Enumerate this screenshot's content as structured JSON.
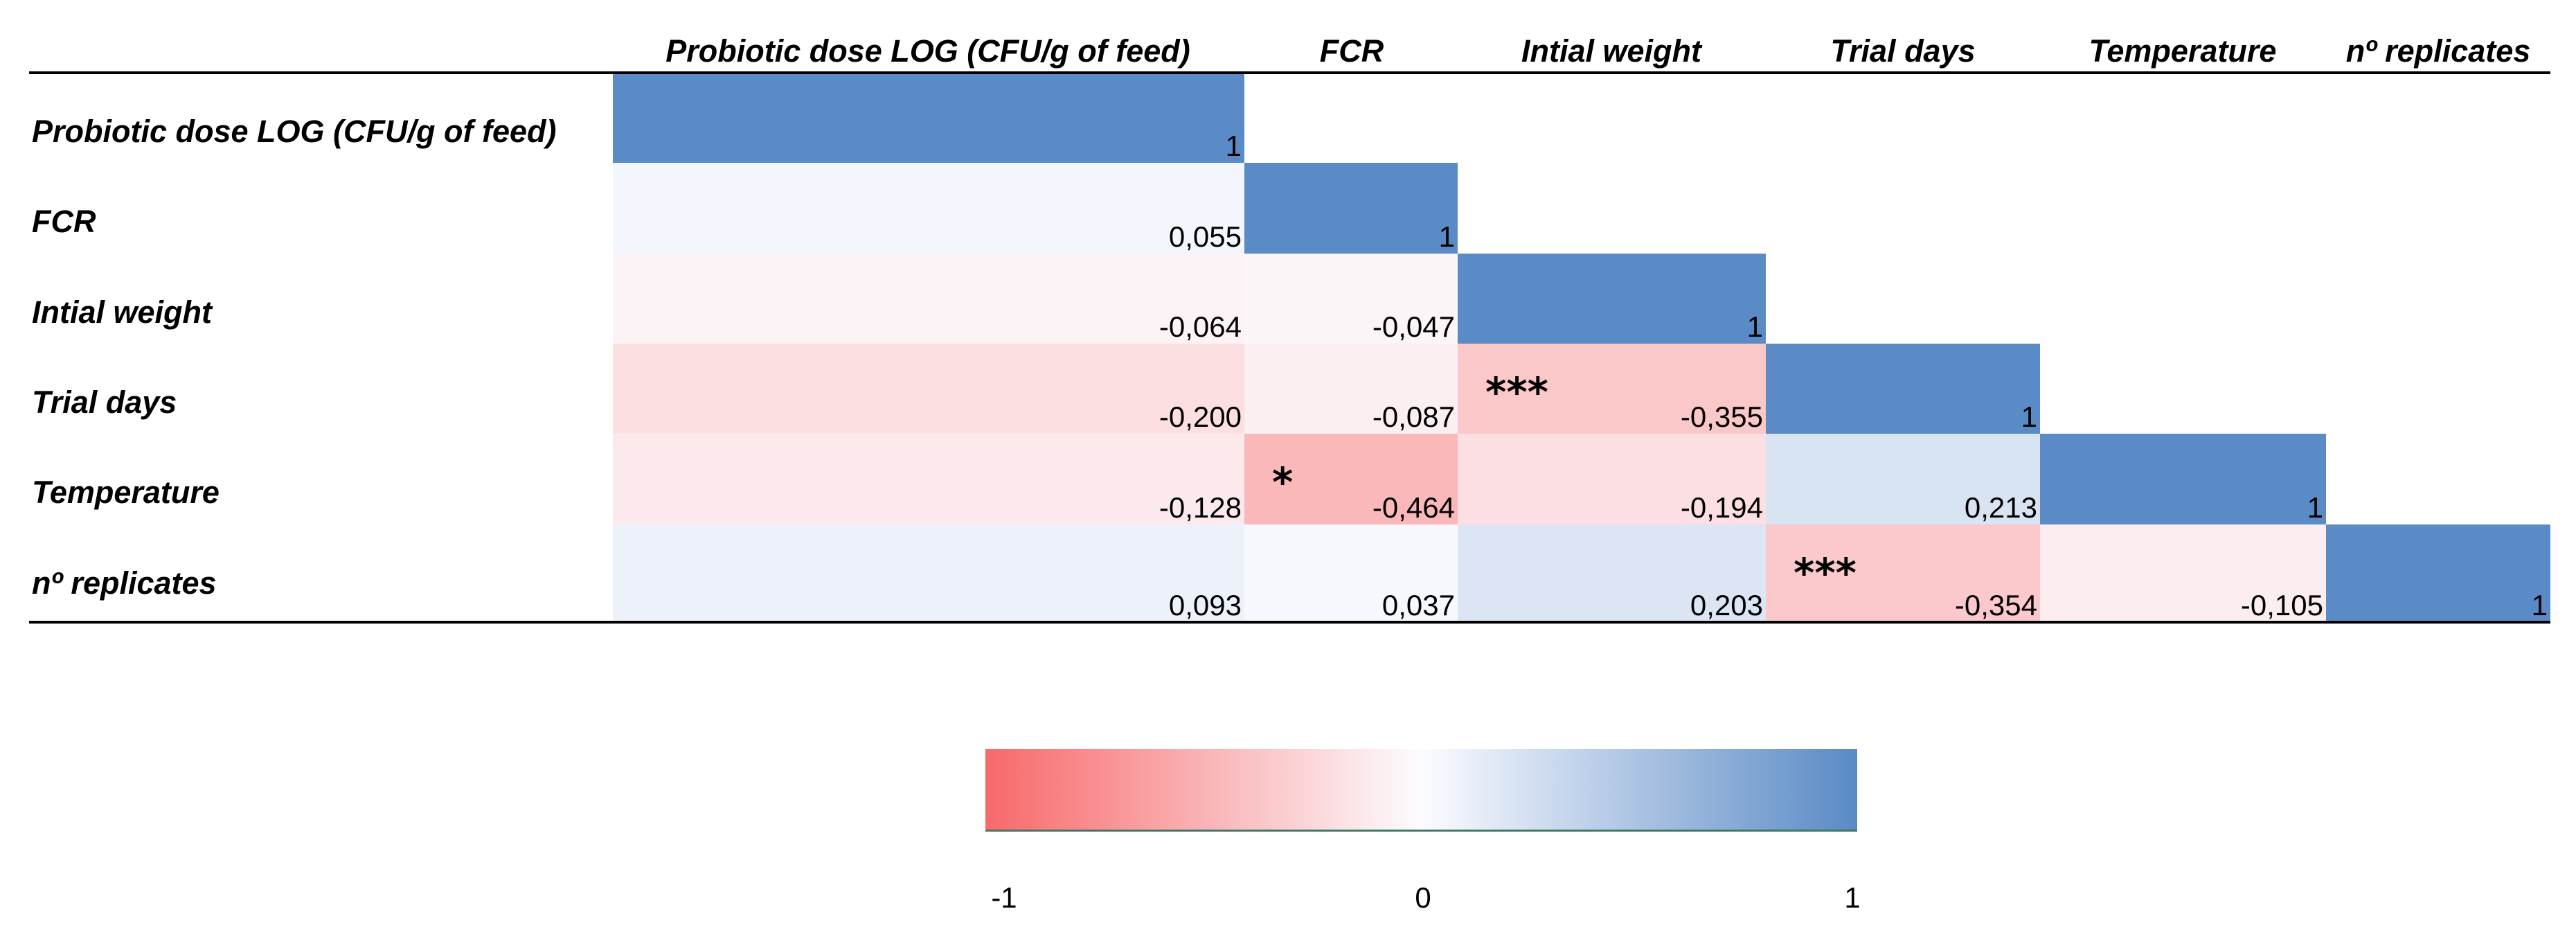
{
  "chart_data": {
    "type": "heatmap",
    "subtype": "lower-triangular correlation matrix",
    "columns": [
      "Probiotic dose LOG (CFU/g of feed)",
      "FCR",
      "Intial weight",
      "Trial days",
      "Temperature",
      "nº replicates"
    ],
    "rows": [
      "Probiotic dose LOG (CFU/g of feed)",
      "FCR",
      "Intial weight",
      "Trial days",
      "Temperature",
      "nº replicates"
    ],
    "values": [
      [
        1,
        null,
        null,
        null,
        null,
        null
      ],
      [
        0.055,
        1,
        null,
        null,
        null,
        null
      ],
      [
        -0.064,
        -0.047,
        1,
        null,
        null,
        null
      ],
      [
        -0.2,
        -0.087,
        -0.355,
        1,
        null,
        null
      ],
      [
        -0.128,
        -0.464,
        -0.194,
        0.213,
        1,
        null
      ],
      [
        0.093,
        0.037,
        0.203,
        -0.354,
        -0.105,
        1
      ]
    ],
    "labels": [
      [
        "1",
        null,
        null,
        null,
        null,
        null
      ],
      [
        "0,055",
        "1",
        null,
        null,
        null,
        null
      ],
      [
        "-0,064",
        "-0,047",
        "1",
        null,
        null,
        null
      ],
      [
        "-0,200",
        "-0,087",
        "-0,355",
        "1",
        null,
        null
      ],
      [
        "-0,128",
        "-0,464",
        "-0,194",
        "0,213",
        "1",
        null
      ],
      [
        "0,093",
        "0,037",
        "0,203",
        "-0,354",
        "-0,105",
        "1"
      ]
    ],
    "significance": [
      {
        "row": 3,
        "col": 2,
        "marker": "***"
      },
      {
        "row": 4,
        "col": 1,
        "marker": "*"
      },
      {
        "row": 5,
        "col": 3,
        "marker": "***"
      }
    ],
    "color_scale": {
      "min": -1,
      "mid": 0,
      "max": 1,
      "min_color": "#f8696b",
      "mid_color": "#fcfcff",
      "max_color": "#5a8ac6",
      "diagonal_color": "#5b8bc6",
      "tick_labels": [
        "-1",
        "0",
        "1"
      ]
    },
    "colors": {
      "rule": "#000000",
      "colorbar_base": "#3d7a66"
    }
  }
}
